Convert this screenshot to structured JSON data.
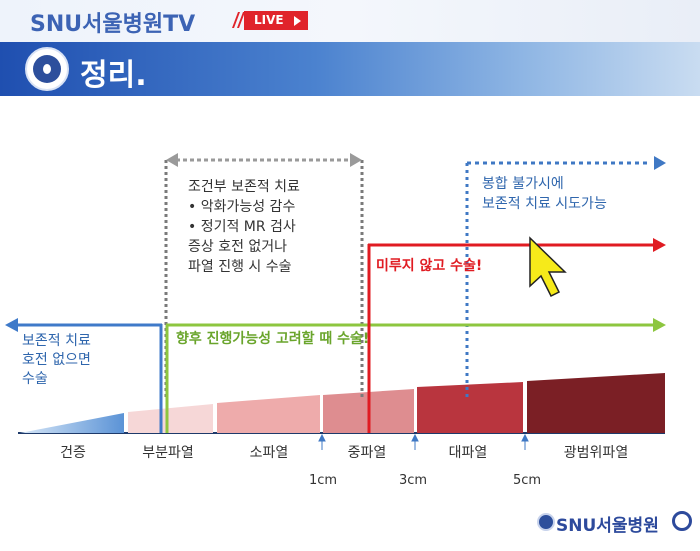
{
  "header": {
    "brand": "SNU서울병원TV",
    "live_label": "LIVE",
    "title": "정리."
  },
  "diagram": {
    "left_box": [
      "보존적 치료",
      "호전 없으면",
      "수술"
    ],
    "middle_box": [
      "조건부 보존적 치료",
      "•   악화가능성 감수",
      "•   정기적 MR 검사",
      "증상 호전 없거나",
      "파열 진행 시 수술"
    ],
    "right_box": [
      "봉합 불가시에",
      "보존적 치료 시도가능"
    ],
    "red_arrow_label": "미루지 않고 수술!",
    "green_arrow_label": "향후 진행가능성 고려할 때 수술!",
    "stages": [
      "건증",
      "부분파열",
      "소파열",
      "중파열",
      "대파열",
      "광범위파열"
    ],
    "sizes": [
      "1cm",
      "3cm",
      "5cm"
    ]
  },
  "footer": {
    "logo": "SNU서울병원"
  },
  "colors": {
    "blue": "#3f7ac9",
    "gray": "#7a7a7a",
    "red": "#e01b22",
    "green": "#8dc63f",
    "dotted_blue": "#3f78c4",
    "cursor": "#f6ea1a"
  }
}
